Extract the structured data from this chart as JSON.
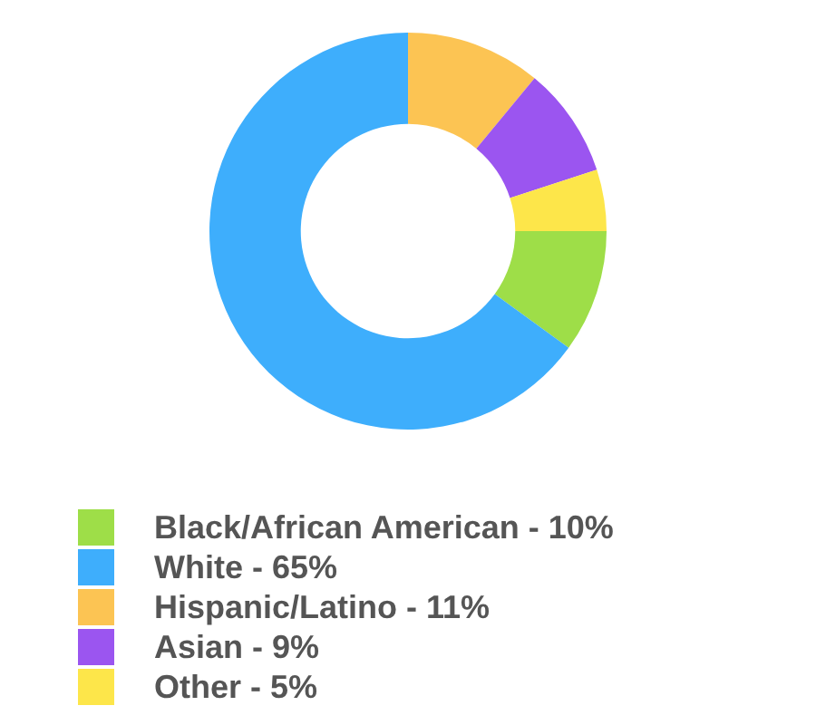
{
  "chart_data": {
    "type": "donut",
    "categories": [
      "Black/African American - 10%",
      "White - 65%",
      "Hispanic/Latino - 11%",
      "Asian - 9%",
      "Other - 5%"
    ],
    "values": [
      10,
      65,
      11,
      9,
      5
    ],
    "colors": [
      "#9ede48",
      "#3eaefc",
      "#fcc453",
      "#9b55f0",
      "#fde64a"
    ],
    "legend": "bottom"
  }
}
